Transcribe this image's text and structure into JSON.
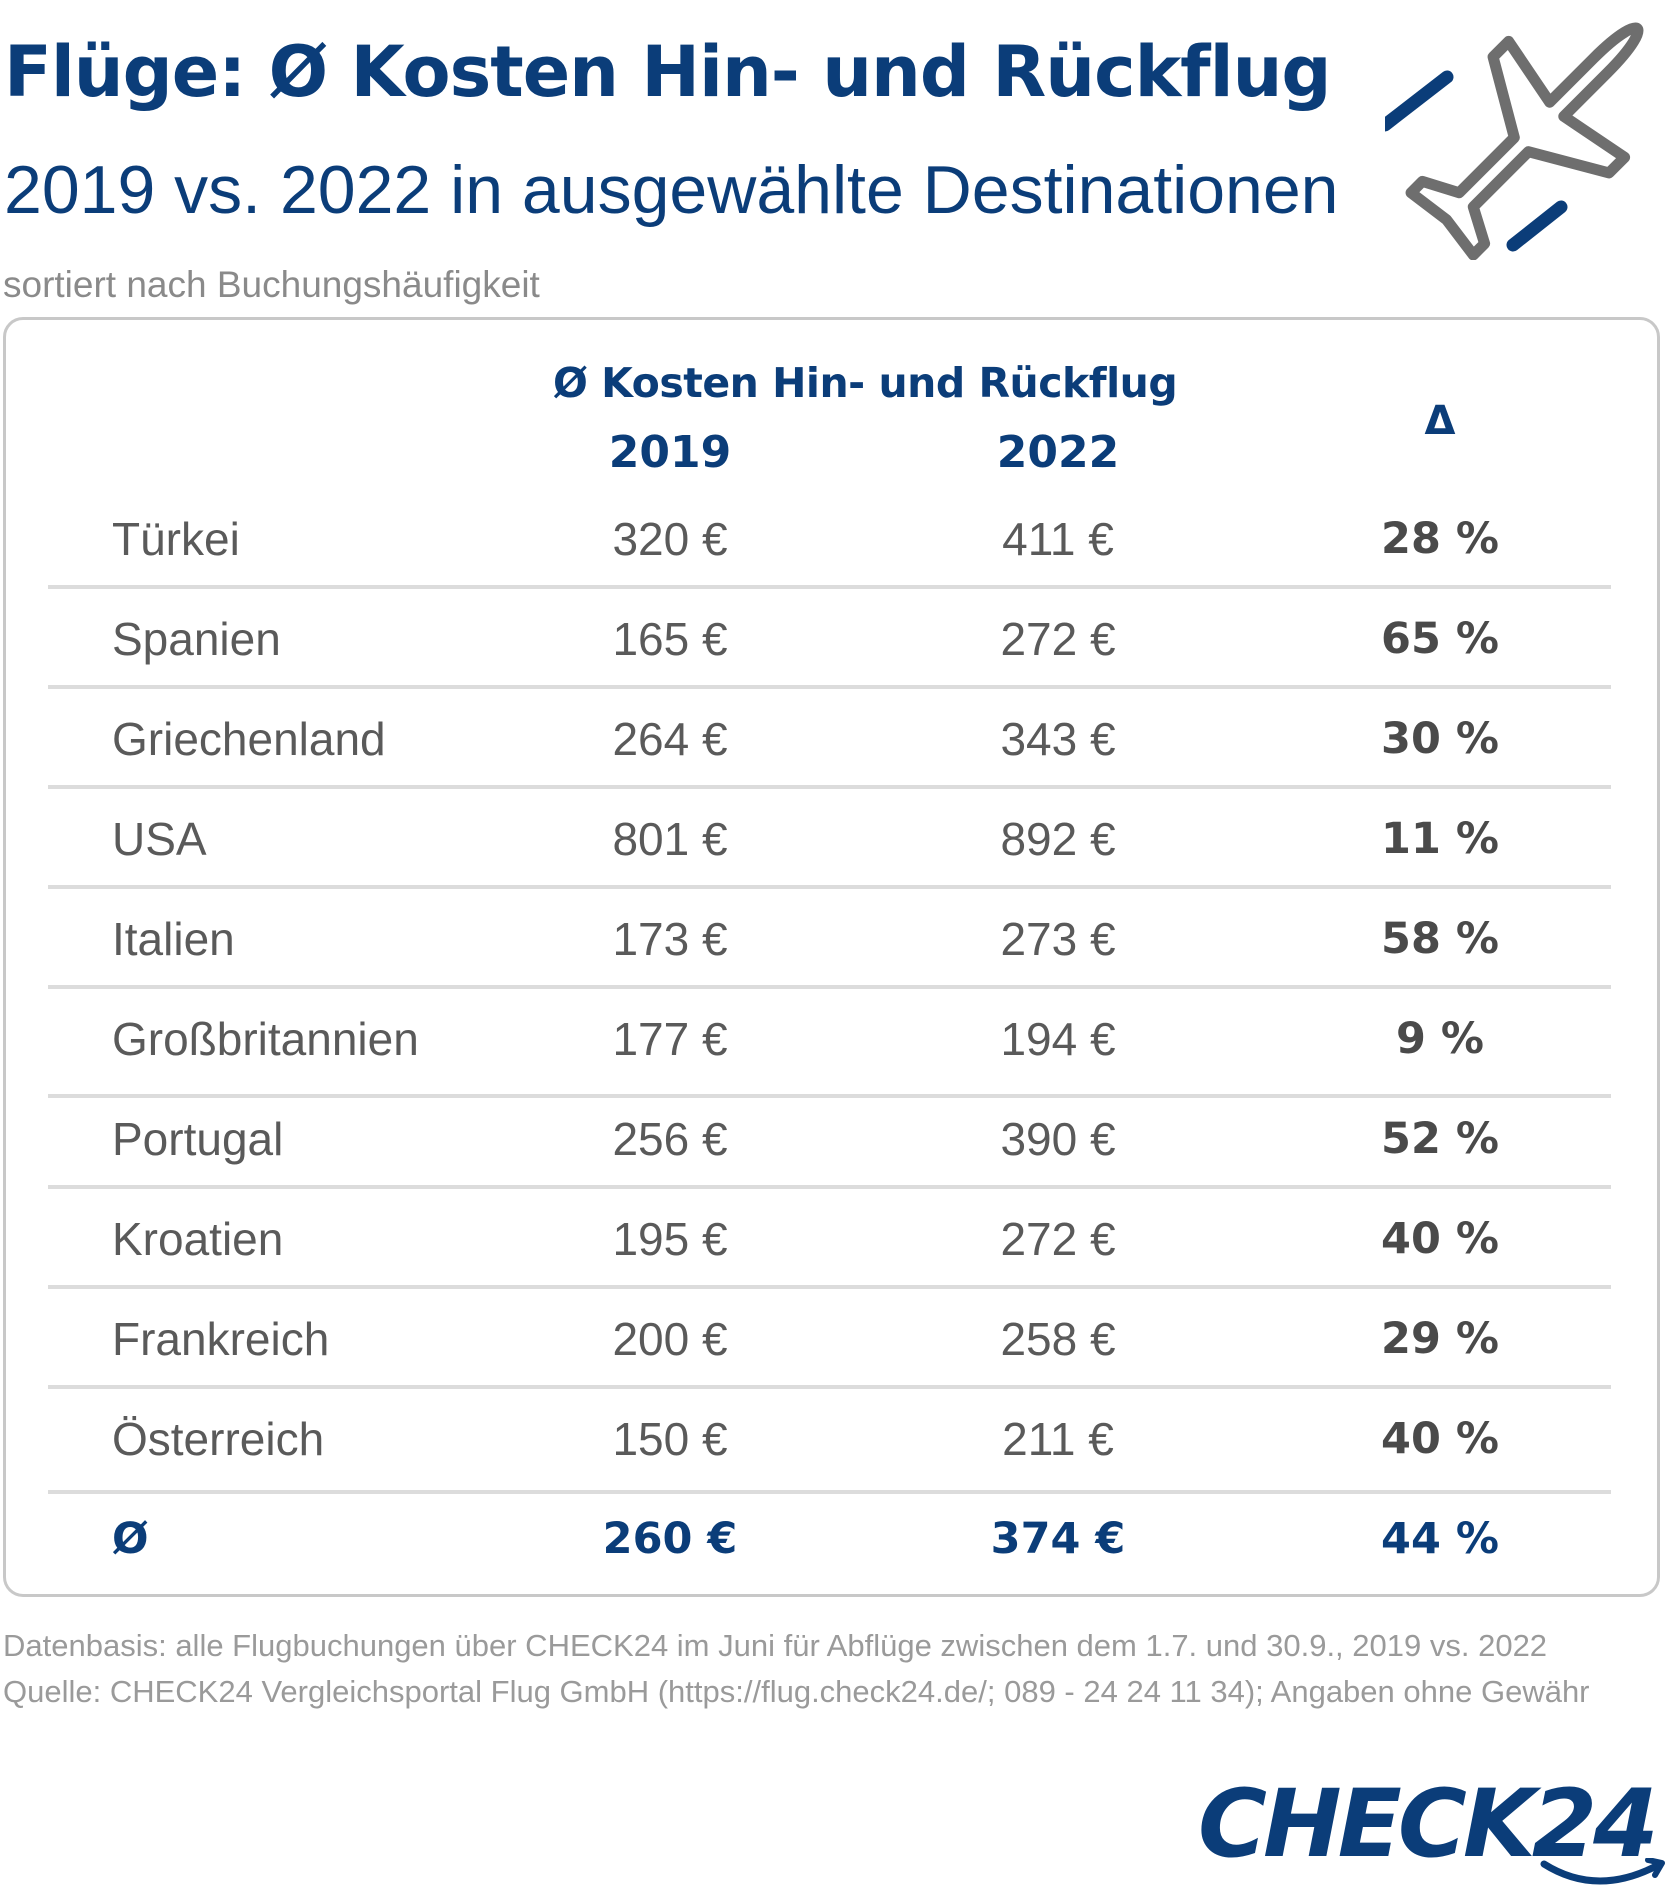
{
  "header": {
    "title": "Flüge: Ø Kosten Hin- und Rückflug",
    "subtitle": "2019 vs. 2022 in ausgewählte Destinationen",
    "sort_note": "sortiert nach Buchungshäufigkeit"
  },
  "table": {
    "group_header": "Ø Kosten Hin- und Rückflug",
    "col_2019": "2019",
    "col_2022": "2022",
    "col_delta": "Δ",
    "rows": [
      {
        "country": "Türkei",
        "v2019": "320 €",
        "v2022": "411 €",
        "delta": "28 %"
      },
      {
        "country": "Spanien",
        "v2019": "165 €",
        "v2022": "272 €",
        "delta": "65 %"
      },
      {
        "country": "Griechenland",
        "v2019": "264 €",
        "v2022": "343 €",
        "delta": "30 %"
      },
      {
        "country": "USA",
        "v2019": "801 €",
        "v2022": "892 €",
        "delta": "11 %"
      },
      {
        "country": "Italien",
        "v2019": "173 €",
        "v2022": "273 €",
        "delta": "58 %"
      },
      {
        "country": "Großbritannien",
        "v2019": "177 €",
        "v2022": "194 €",
        "delta": "9 %"
      },
      {
        "country": "Portugal",
        "v2019": "256 €",
        "v2022": "390 €",
        "delta": "52 %"
      },
      {
        "country": "Kroatien",
        "v2019": "195 €",
        "v2022": "272 €",
        "delta": "40 %"
      },
      {
        "country": "Frankreich",
        "v2019": "200 €",
        "v2022": "258 €",
        "delta": "29 %"
      },
      {
        "country": "Österreich",
        "v2019": "150 €",
        "v2022": "211 €",
        "delta": "40 %"
      }
    ],
    "average": {
      "label": "Ø",
      "v2019": "260 €",
      "v2022": "374 €",
      "delta": "44 %"
    }
  },
  "footer": {
    "data_basis": "Datenbasis: alle Flugbuchungen über CHECK24 im Juni für Abflüge zwischen dem 1.7. und 30.9., 2019 vs. 2022",
    "source": "Quelle: CHECK24 Vergleichsportal Flug GmbH (https://flug.check24.de/; 089 - 24 24 11 34); Angaben ohne Gewähr"
  },
  "brand": {
    "logo_text": "CHECK24",
    "primary_color": "#0b3d79",
    "text_color": "#5a5a5a",
    "icon": "airplane-icon"
  }
}
